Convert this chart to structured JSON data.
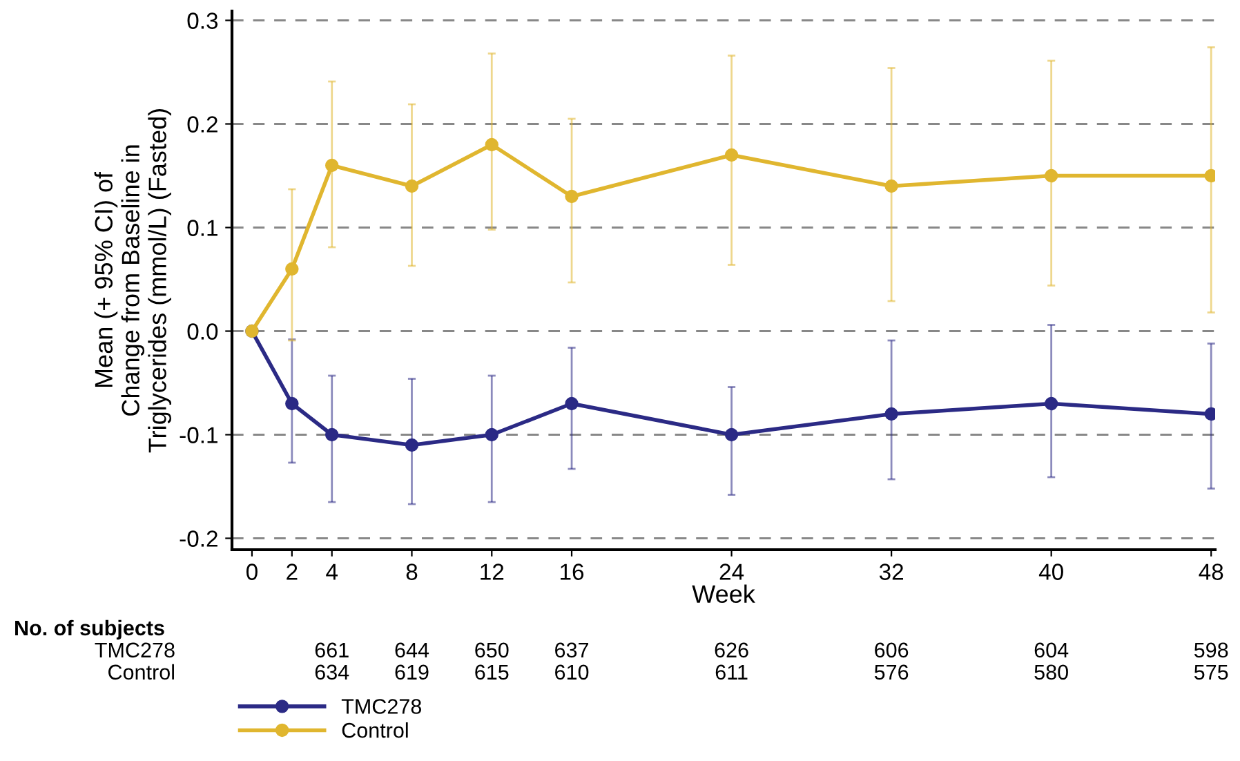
{
  "chart_data": {
    "type": "line",
    "xlabel": "Week",
    "ylabel": "Mean (+ 95% CI) of\nChange from Baseline in\nTriglycerides (mmol/L) (Fasted)",
    "x": [
      0,
      2,
      4,
      8,
      12,
      16,
      24,
      32,
      40,
      48
    ],
    "series": [
      {
        "name": "TMC278",
        "color": "#2b2a85",
        "values": [
          0,
          -0.07,
          -0.1,
          -0.11,
          -0.1,
          -0.07,
          -0.1,
          -0.08,
          -0.07,
          -0.08
        ],
        "errors": [
          null,
          [
            -0.127,
            -0.008
          ],
          [
            -0.165,
            -0.043
          ],
          [
            -0.167,
            -0.046
          ],
          [
            -0.165,
            -0.043
          ],
          [
            -0.133,
            -0.016
          ],
          [
            -0.158,
            -0.054
          ],
          [
            -0.143,
            -0.009
          ],
          [
            -0.141,
            0.006
          ],
          [
            -0.152,
            -0.012
          ]
        ]
      },
      {
        "name": "Control",
        "color": "#e0b62f",
        "values": [
          0,
          0.06,
          0.16,
          0.14,
          0.18,
          0.13,
          0.17,
          0.14,
          0.15,
          0.15
        ],
        "errors": [
          null,
          [
            -0.009,
            0.137
          ],
          [
            0.081,
            0.241
          ],
          [
            0.063,
            0.219
          ],
          [
            0.098,
            0.268
          ],
          [
            0.047,
            0.205
          ],
          [
            0.064,
            0.266
          ],
          [
            0.029,
            0.254
          ],
          [
            0.044,
            0.261
          ],
          [
            0.018,
            0.274
          ]
        ]
      }
    ],
    "xlim": [
      -1,
      48.2
    ],
    "xticks": [
      0,
      2,
      4,
      8,
      12,
      16,
      24,
      32,
      40,
      48
    ],
    "ylim": [
      -0.211,
      0.309
    ],
    "yticks": [
      {
        "value": -0.2,
        "label": "-0.2"
      },
      {
        "value": -0.1,
        "label": "-0.1"
      },
      {
        "value": 0,
        "label": "0.0"
      },
      0.1,
      0.2,
      0.3
    ],
    "grid": "y",
    "legend": "bottom",
    "marker": "circle",
    "line_style": "solid",
    "annotations": [
      "No. of subjects",
      "TMC278",
      "661",
      "644",
      "650",
      "637",
      "626",
      "606",
      "604",
      "598",
      "Control",
      "634",
      "619",
      "615",
      "610",
      "611",
      "576",
      "580",
      "575"
    ]
  }
}
